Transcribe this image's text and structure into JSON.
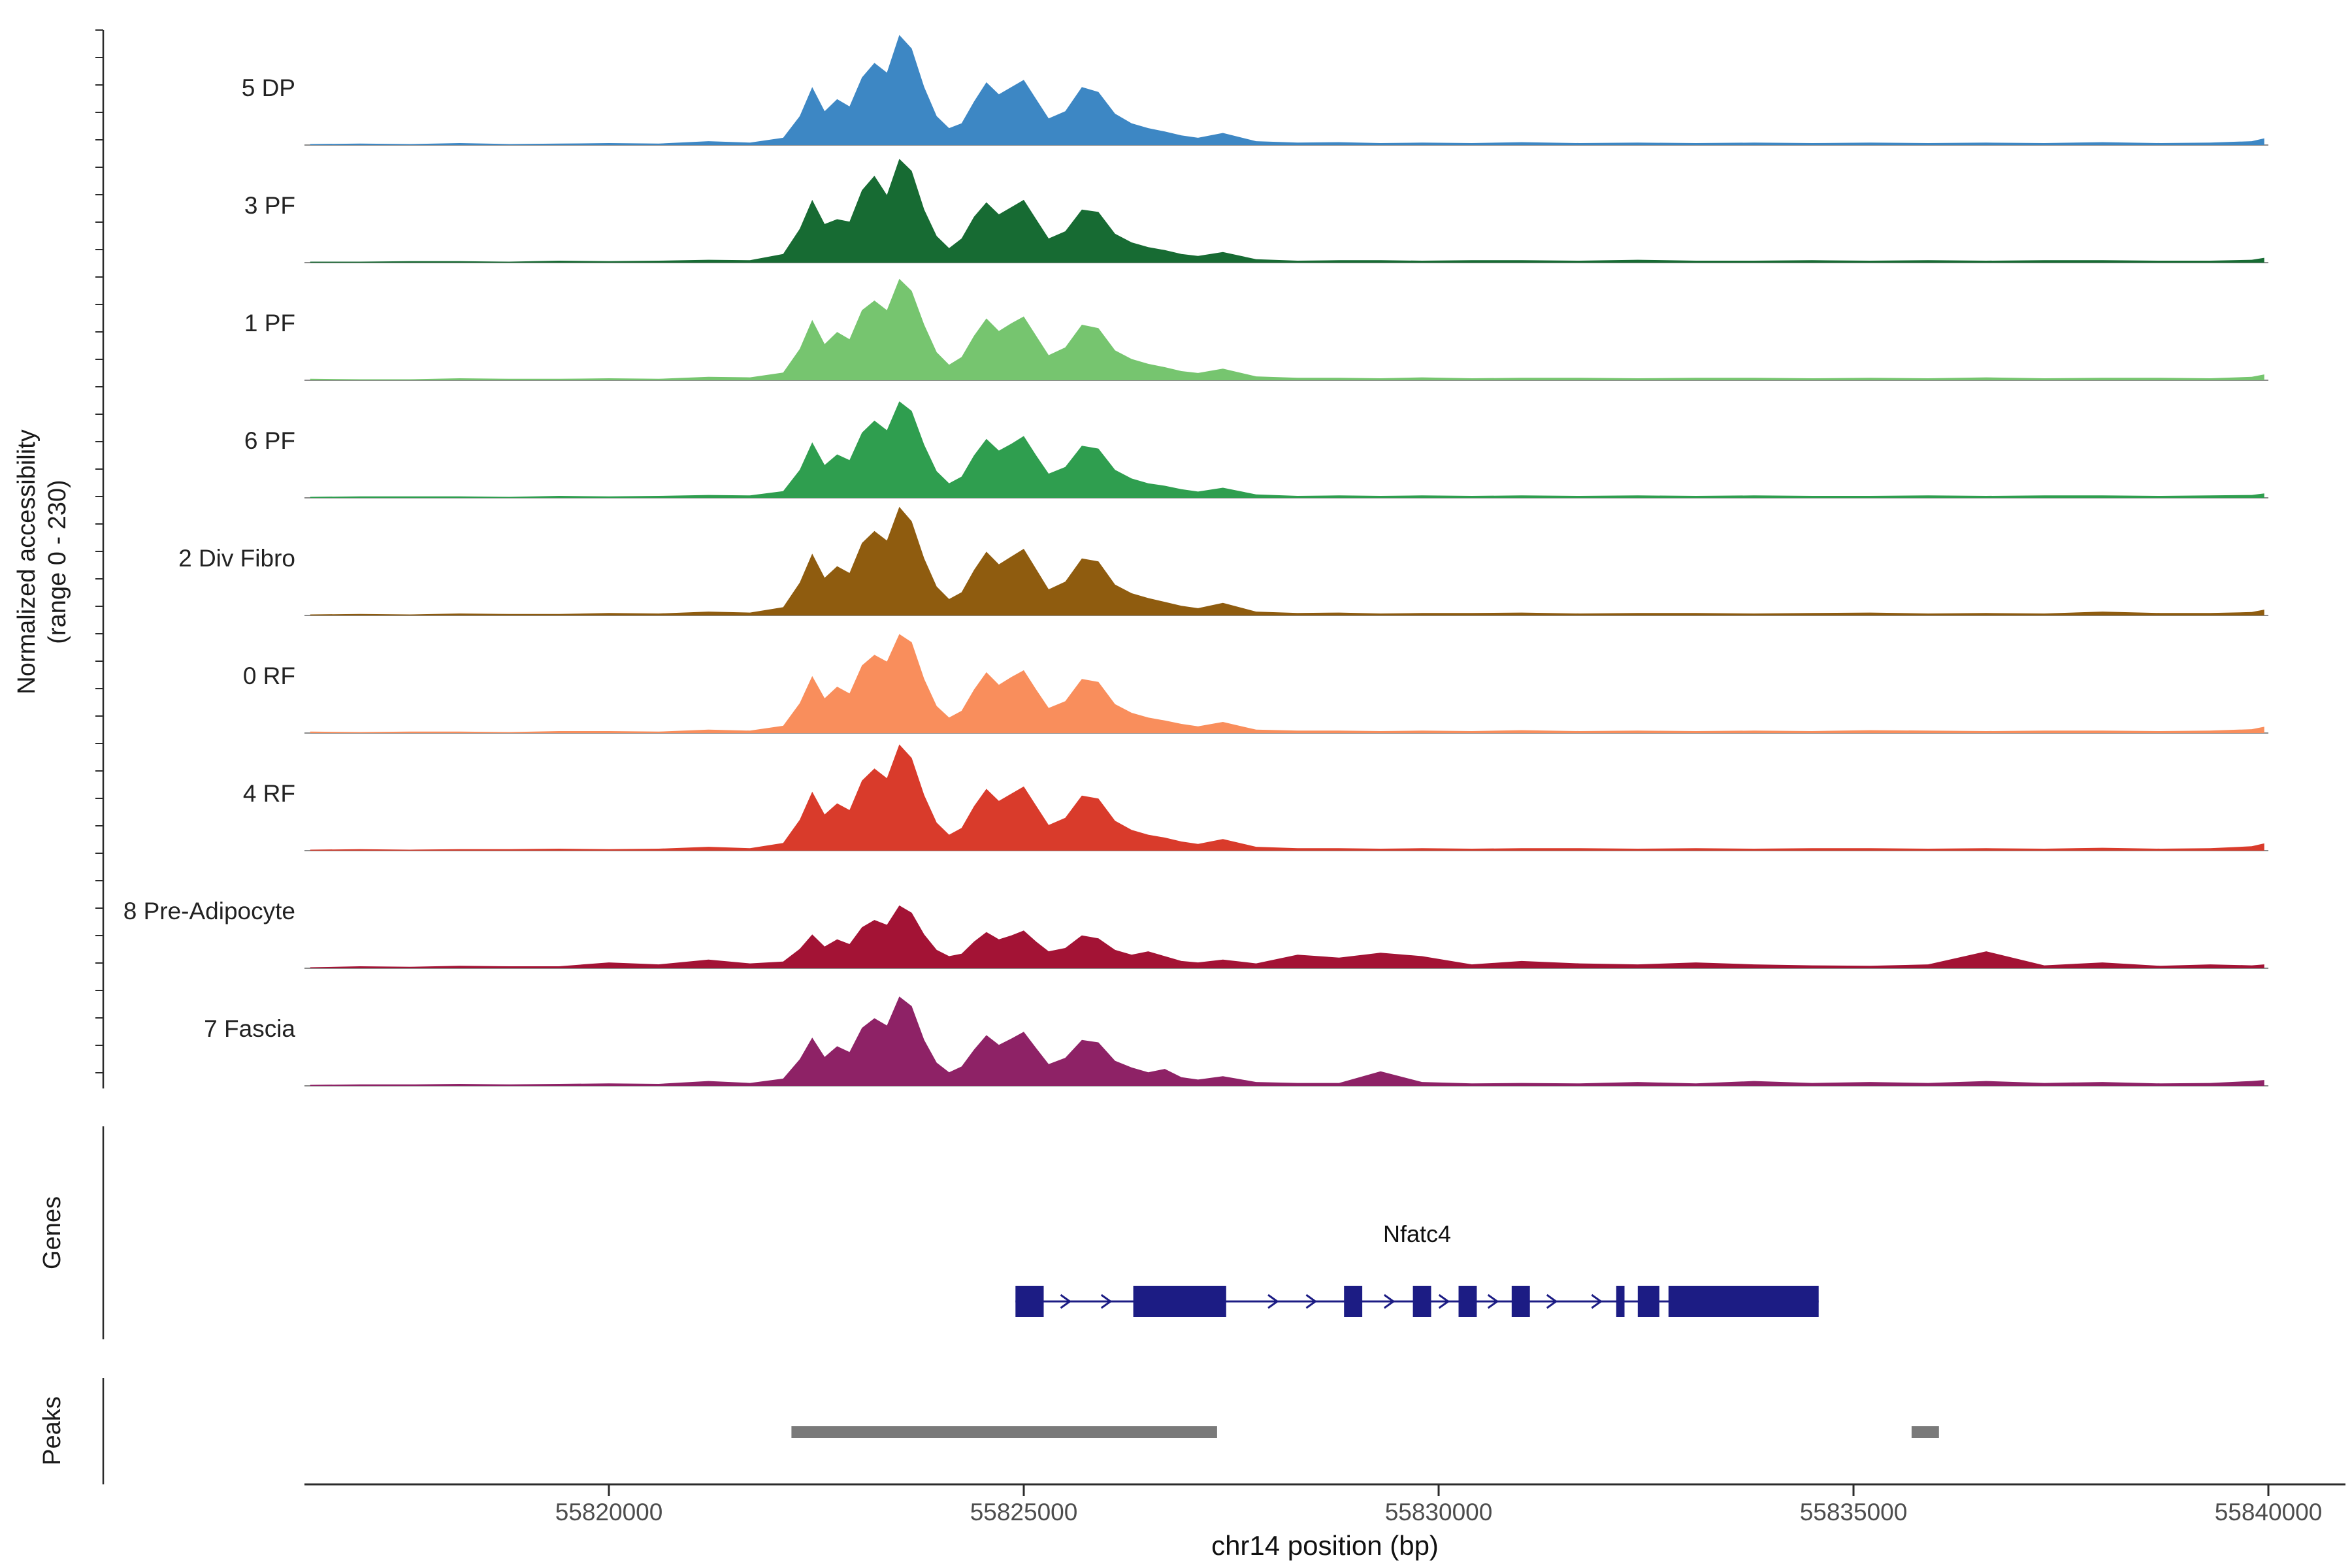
{
  "figure": {
    "ylabel_line1": "Normalized accessibility",
    "ylabel_line2": "(range 0 - 230)",
    "genes_section_label": "Genes",
    "peaks_section_label": "Peaks",
    "xlabel": "chr14 position (bp)"
  },
  "chart_data": {
    "type": "area",
    "title": "",
    "xlabel": "chr14 position (bp)",
    "ylabel": "Normalized accessibility (range 0 - 230)",
    "chromosome": "chr14",
    "x_range_bp": [
      55816400,
      55840000
    ],
    "x_ticks": [
      55820000,
      55825000,
      55830000,
      55835000,
      55840000
    ],
    "y_range_per_track": [
      0,
      230
    ],
    "x_anchors_bp": [
      55816400,
      55817000,
      55817600,
      55818200,
      55818800,
      55819400,
      55820000,
      55820600,
      55821200,
      55821700,
      55822100,
      55822300,
      55822450,
      55822600,
      55822750,
      55822900,
      55823050,
      55823200,
      55823350,
      55823500,
      55823650,
      55823800,
      55823950,
      55824100,
      55824250,
      55824400,
      55824550,
      55824700,
      55824850,
      55825000,
      55825150,
      55825300,
      55825500,
      55825700,
      55825900,
      55826100,
      55826300,
      55826500,
      55826700,
      55826900,
      55827100,
      55827400,
      55827800,
      55828300,
      55828800,
      55829300,
      55829800,
      55830400,
      55831000,
      55831700,
      55832400,
      55833100,
      55833800,
      55834500,
      55835200,
      55835900,
      55836600,
      55837300,
      55838000,
      55838700,
      55839300,
      55839800,
      55839950
    ],
    "tracks": [
      {
        "label": "5 DP",
        "color": "#3d87c4",
        "values": [
          2,
          3,
          2,
          4,
          2,
          3,
          4,
          3,
          8,
          5,
          15,
          60,
          120,
          70,
          95,
          80,
          140,
          170,
          150,
          228,
          200,
          120,
          60,
          35,
          45,
          90,
          130,
          105,
          120,
          135,
          95,
          55,
          70,
          120,
          110,
          65,
          45,
          35,
          28,
          20,
          15,
          25,
          8,
          5,
          6,
          4,
          5,
          4,
          6,
          4,
          5,
          4,
          5,
          4,
          5,
          4,
          5,
          4,
          6,
          4,
          5,
          8,
          14
        ]
      },
      {
        "label": "3 PF",
        "color": "#176b33",
        "values": [
          2,
          2,
          3,
          3,
          2,
          4,
          3,
          4,
          6,
          5,
          18,
          70,
          130,
          80,
          90,
          85,
          150,
          180,
          140,
          215,
          190,
          110,
          55,
          30,
          50,
          95,
          125,
          100,
          115,
          130,
          90,
          50,
          65,
          110,
          105,
          60,
          42,
          32,
          26,
          18,
          14,
          22,
          7,
          4,
          5,
          5,
          4,
          5,
          5,
          4,
          6,
          4,
          4,
          5,
          4,
          5,
          4,
          5,
          5,
          4,
          4,
          6,
          10
        ]
      },
      {
        "label": "1 PF",
        "color": "#76c56f",
        "values": [
          3,
          2,
          2,
          4,
          3,
          3,
          4,
          3,
          7,
          6,
          16,
          65,
          125,
          75,
          100,
          85,
          145,
          165,
          145,
          210,
          185,
          115,
          58,
          32,
          48,
          92,
          128,
          102,
          118,
          132,
          92,
          52,
          68,
          115,
          108,
          62,
          44,
          34,
          27,
          19,
          15,
          24,
          8,
          5,
          5,
          4,
          6,
          4,
          5,
          5,
          4,
          5,
          5,
          4,
          5,
          4,
          6,
          4,
          5,
          5,
          4,
          7,
          12
        ]
      },
      {
        "label": "6 PF",
        "color": "#2f9e4f",
        "values": [
          2,
          3,
          3,
          3,
          2,
          4,
          3,
          4,
          6,
          5,
          14,
          58,
          115,
          68,
          90,
          78,
          135,
          160,
          140,
          200,
          180,
          110,
          55,
          30,
          44,
          88,
          122,
          98,
          112,
          128,
          88,
          50,
          64,
          108,
          102,
          58,
          40,
          30,
          25,
          18,
          13,
          21,
          7,
          4,
          5,
          4,
          5,
          4,
          5,
          4,
          5,
          4,
          5,
          4,
          4,
          5,
          4,
          5,
          5,
          4,
          5,
          6,
          9
        ]
      },
      {
        "label": "2 Div Fibro",
        "color": "#8f5c0f",
        "values": [
          2,
          3,
          2,
          4,
          3,
          3,
          5,
          4,
          8,
          6,
          17,
          68,
          128,
          78,
          102,
          88,
          150,
          175,
          155,
          225,
          195,
          118,
          60,
          34,
          48,
          94,
          132,
          106,
          122,
          138,
          96,
          54,
          70,
          118,
          112,
          64,
          46,
          36,
          28,
          20,
          15,
          26,
          8,
          5,
          6,
          4,
          5,
          5,
          6,
          4,
          5,
          5,
          4,
          5,
          6,
          4,
          5,
          4,
          8,
          5,
          5,
          7,
          12
        ]
      },
      {
        "label": "0 RF",
        "color": "#f98e5c",
        "values": [
          3,
          2,
          3,
          3,
          2,
          4,
          4,
          3,
          7,
          5,
          15,
          62,
          118,
          72,
          96,
          82,
          140,
          162,
          148,
          205,
          188,
          112,
          56,
          32,
          46,
          90,
          126,
          100,
          116,
          130,
          90,
          52,
          66,
          112,
          106,
          60,
          42,
          32,
          26,
          19,
          14,
          23,
          7,
          5,
          5,
          4,
          5,
          4,
          6,
          4,
          5,
          4,
          5,
          4,
          6,
          5,
          4,
          5,
          5,
          4,
          5,
          8,
          13
        ]
      },
      {
        "label": "4 RF",
        "color": "#d93b2b",
        "values": [
          2,
          3,
          2,
          3,
          3,
          4,
          3,
          4,
          8,
          5,
          16,
          64,
          122,
          75,
          98,
          84,
          145,
          170,
          150,
          220,
          192,
          115,
          58,
          33,
          47,
          92,
          128,
          103,
          118,
          133,
          93,
          53,
          68,
          114,
          108,
          62,
          43,
          33,
          27,
          19,
          14,
          24,
          8,
          5,
          5,
          4,
          5,
          4,
          5,
          5,
          4,
          5,
          4,
          5,
          5,
          4,
          5,
          4,
          6,
          4,
          5,
          9,
          15
        ]
      },
      {
        "label": "8 Pre-Adipocyte",
        "color": "#a31335",
        "values": [
          2,
          4,
          3,
          5,
          4,
          4,
          12,
          8,
          18,
          10,
          14,
          40,
          70,
          45,
          60,
          50,
          85,
          100,
          90,
          130,
          115,
          70,
          38,
          25,
          30,
          55,
          75,
          60,
          68,
          78,
          55,
          35,
          42,
          68,
          62,
          38,
          28,
          35,
          25,
          15,
          12,
          18,
          10,
          28,
          22,
          32,
          25,
          8,
          15,
          10,
          8,
          12,
          8,
          6,
          5,
          8,
          35,
          6,
          12,
          5,
          8,
          6,
          8
        ]
      },
      {
        "label": "7 Fascia",
        "color": "#8e2266",
        "values": [
          2,
          3,
          3,
          4,
          3,
          4,
          5,
          4,
          10,
          6,
          15,
          55,
          100,
          60,
          82,
          70,
          120,
          140,
          125,
          185,
          165,
          95,
          48,
          28,
          40,
          75,
          105,
          85,
          98,
          112,
          78,
          45,
          58,
          95,
          90,
          52,
          38,
          28,
          35,
          18,
          13,
          20,
          8,
          6,
          6,
          30,
          8,
          5,
          6,
          5,
          8,
          5,
          10,
          6,
          8,
          6,
          10,
          6,
          8,
          5,
          6,
          10,
          12
        ]
      }
    ],
    "genes_track": {
      "gene": {
        "name": "Nfatc4",
        "strand": "+",
        "start_bp": 55824900,
        "end_bp": 55834580,
        "color": "#1c1c84",
        "exons_bp": [
          [
            55824900,
            55825240
          ],
          [
            55826320,
            55827440
          ],
          [
            55828860,
            55829080
          ],
          [
            55829690,
            55829910
          ],
          [
            55830240,
            55830460
          ],
          [
            55830880,
            55831100
          ],
          [
            55832140,
            55832240
          ],
          [
            55832400,
            55832660
          ],
          [
            55832770,
            55834580
          ]
        ],
        "arrow_positions_bp": [
          55825500,
          55825990,
          55828000,
          55828460,
          55829400,
          55830060,
          55830650,
          55831360,
          55831900
        ]
      }
    },
    "peaks_track": {
      "color": "#7a7a7a",
      "peaks_bp": [
        [
          55822200,
          55827330
        ],
        [
          55835700,
          55836030
        ]
      ]
    }
  }
}
